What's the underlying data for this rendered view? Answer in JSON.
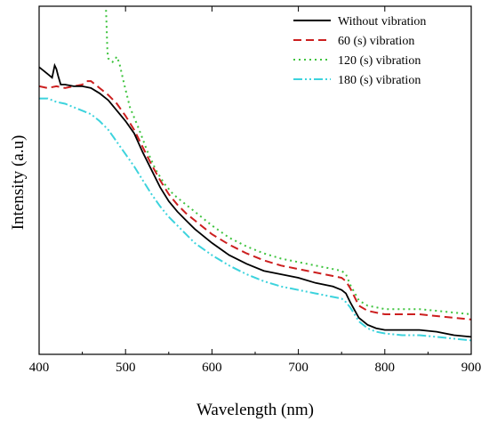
{
  "chart_data": {
    "type": "line",
    "title": "",
    "xlabel": "Wavelength (nm)",
    "ylabel": "Intensity (a.u)",
    "xlim": [
      400,
      900
    ],
    "ylim": [
      0,
      1
    ],
    "xticks": [
      400,
      500,
      600,
      700,
      800,
      900
    ],
    "xtick_labels": [
      "400",
      "500",
      "600",
      "700",
      "800",
      "900"
    ],
    "y_tick_labels_shown": false,
    "grid": false,
    "legend_position": "top-right",
    "series": [
      {
        "name": "Without vibration",
        "color": "#000000",
        "dash": "solid",
        "points": [
          [
            400,
            0.825
          ],
          [
            405,
            0.815
          ],
          [
            410,
            0.805
          ],
          [
            415,
            0.795
          ],
          [
            418,
            0.83
          ],
          [
            420,
            0.82
          ],
          [
            422,
            0.8
          ],
          [
            425,
            0.775
          ],
          [
            430,
            0.775
          ],
          [
            440,
            0.77
          ],
          [
            450,
            0.77
          ],
          [
            460,
            0.765
          ],
          [
            470,
            0.75
          ],
          [
            480,
            0.73
          ],
          [
            490,
            0.7
          ],
          [
            500,
            0.67
          ],
          [
            510,
            0.635
          ],
          [
            520,
            0.58
          ],
          [
            530,
            0.53
          ],
          [
            540,
            0.48
          ],
          [
            550,
            0.44
          ],
          [
            560,
            0.41
          ],
          [
            570,
            0.385
          ],
          [
            580,
            0.36
          ],
          [
            600,
            0.32
          ],
          [
            620,
            0.285
          ],
          [
            640,
            0.26
          ],
          [
            660,
            0.24
          ],
          [
            680,
            0.23
          ],
          [
            700,
            0.22
          ],
          [
            720,
            0.205
          ],
          [
            740,
            0.195
          ],
          [
            750,
            0.185
          ],
          [
            755,
            0.175
          ],
          [
            760,
            0.15
          ],
          [
            770,
            0.105
          ],
          [
            780,
            0.085
          ],
          [
            790,
            0.075
          ],
          [
            800,
            0.07
          ],
          [
            820,
            0.07
          ],
          [
            840,
            0.07
          ],
          [
            860,
            0.065
          ],
          [
            880,
            0.055
          ],
          [
            900,
            0.05
          ]
        ]
      },
      {
        "name": "60 (s) vibration",
        "color": "#cc1f1f",
        "dash": "dashed",
        "points": [
          [
            400,
            0.77
          ],
          [
            410,
            0.765
          ],
          [
            420,
            0.77
          ],
          [
            430,
            0.765
          ],
          [
            440,
            0.77
          ],
          [
            450,
            0.775
          ],
          [
            455,
            0.785
          ],
          [
            460,
            0.785
          ],
          [
            470,
            0.765
          ],
          [
            480,
            0.745
          ],
          [
            490,
            0.72
          ],
          [
            500,
            0.685
          ],
          [
            510,
            0.645
          ],
          [
            520,
            0.595
          ],
          [
            530,
            0.545
          ],
          [
            540,
            0.5
          ],
          [
            550,
            0.46
          ],
          [
            560,
            0.43
          ],
          [
            570,
            0.405
          ],
          [
            580,
            0.385
          ],
          [
            600,
            0.345
          ],
          [
            620,
            0.315
          ],
          [
            640,
            0.29
          ],
          [
            660,
            0.27
          ],
          [
            680,
            0.255
          ],
          [
            700,
            0.245
          ],
          [
            720,
            0.235
          ],
          [
            740,
            0.225
          ],
          [
            750,
            0.22
          ],
          [
            755,
            0.21
          ],
          [
            760,
            0.19
          ],
          [
            770,
            0.14
          ],
          [
            780,
            0.125
          ],
          [
            790,
            0.12
          ],
          [
            800,
            0.115
          ],
          [
            820,
            0.115
          ],
          [
            840,
            0.115
          ],
          [
            860,
            0.11
          ],
          [
            880,
            0.105
          ],
          [
            900,
            0.1
          ]
        ]
      },
      {
        "name": "120 (s) vibration",
        "color": "#3fc43f",
        "dash": "dotted",
        "points": [
          [
            477,
            1.02
          ],
          [
            478,
            0.95
          ],
          [
            479,
            0.87
          ],
          [
            480,
            0.85
          ],
          [
            485,
            0.84
          ],
          [
            490,
            0.855
          ],
          [
            493,
            0.835
          ],
          [
            498,
            0.78
          ],
          [
            505,
            0.71
          ],
          [
            515,
            0.65
          ],
          [
            525,
            0.585
          ],
          [
            535,
            0.53
          ],
          [
            545,
            0.49
          ],
          [
            555,
            0.46
          ],
          [
            570,
            0.43
          ],
          [
            580,
            0.41
          ],
          [
            600,
            0.37
          ],
          [
            620,
            0.335
          ],
          [
            640,
            0.31
          ],
          [
            660,
            0.29
          ],
          [
            680,
            0.275
          ],
          [
            700,
            0.265
          ],
          [
            720,
            0.255
          ],
          [
            740,
            0.245
          ],
          [
            750,
            0.24
          ],
          [
            755,
            0.23
          ],
          [
            760,
            0.2
          ],
          [
            770,
            0.155
          ],
          [
            780,
            0.14
          ],
          [
            790,
            0.135
          ],
          [
            800,
            0.13
          ],
          [
            820,
            0.13
          ],
          [
            840,
            0.13
          ],
          [
            860,
            0.125
          ],
          [
            880,
            0.12
          ],
          [
            900,
            0.115
          ]
        ]
      },
      {
        "name": "180 (s) vibration",
        "color": "#3dd3dd",
        "dash": "dash-dot-dot",
        "points": [
          [
            400,
            0.735
          ],
          [
            410,
            0.735
          ],
          [
            420,
            0.725
          ],
          [
            430,
            0.72
          ],
          [
            440,
            0.71
          ],
          [
            450,
            0.7
          ],
          [
            460,
            0.69
          ],
          [
            470,
            0.67
          ],
          [
            480,
            0.645
          ],
          [
            490,
            0.61
          ],
          [
            500,
            0.575
          ],
          [
            510,
            0.54
          ],
          [
            520,
            0.5
          ],
          [
            530,
            0.46
          ],
          [
            540,
            0.425
          ],
          [
            550,
            0.395
          ],
          [
            560,
            0.37
          ],
          [
            570,
            0.345
          ],
          [
            580,
            0.32
          ],
          [
            600,
            0.285
          ],
          [
            620,
            0.255
          ],
          [
            640,
            0.23
          ],
          [
            660,
            0.21
          ],
          [
            680,
            0.195
          ],
          [
            700,
            0.185
          ],
          [
            720,
            0.175
          ],
          [
            740,
            0.165
          ],
          [
            750,
            0.16
          ],
          [
            755,
            0.15
          ],
          [
            760,
            0.135
          ],
          [
            770,
            0.095
          ],
          [
            780,
            0.075
          ],
          [
            790,
            0.065
          ],
          [
            800,
            0.06
          ],
          [
            820,
            0.055
          ],
          [
            840,
            0.055
          ],
          [
            860,
            0.05
          ],
          [
            880,
            0.045
          ],
          [
            900,
            0.04
          ]
        ]
      }
    ]
  }
}
